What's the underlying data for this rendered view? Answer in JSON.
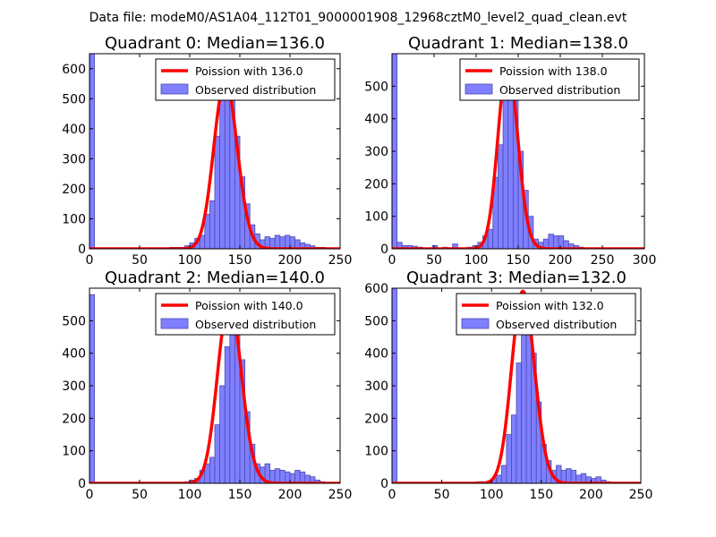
{
  "figure": {
    "suptitle": "Data file: modeM0/AS1A04_112T01_9000001908_12968cztM0_level2_quad_clean.evt"
  },
  "colors": {
    "bar_fill": "#7f7fff",
    "bar_edge": "#4b4bb0",
    "curve": "#ff0000",
    "axes": "#000000",
    "legend_edge": "#000000",
    "background": "#ffffff"
  },
  "chart_data": [
    {
      "type": "bar",
      "title": "Quadrant 0: Median=136.0",
      "xlim": [
        0,
        250
      ],
      "ylim": [
        0,
        650
      ],
      "xticks": [
        0,
        50,
        100,
        150,
        200,
        250
      ],
      "yticks": [
        0,
        100,
        200,
        300,
        400,
        500,
        600
      ],
      "legend": {
        "position": "top-right",
        "entries": [
          "Poission with 136.0",
          "Observed distribution"
        ]
      },
      "curve": {
        "name": "Poission with 136.0",
        "mean": 136.0,
        "peak": 560
      },
      "bar_width": 5,
      "bars": [
        [
          0,
          650
        ],
        [
          80,
          5
        ],
        [
          85,
          5
        ],
        [
          90,
          5
        ],
        [
          95,
          10
        ],
        [
          100,
          20
        ],
        [
          105,
          35
        ],
        [
          110,
          45
        ],
        [
          115,
          115
        ],
        [
          120,
          160
        ],
        [
          125,
          375
        ],
        [
          130,
          500
        ],
        [
          135,
          530
        ],
        [
          140,
          500
        ],
        [
          145,
          375
        ],
        [
          150,
          240
        ],
        [
          155,
          150
        ],
        [
          160,
          80
        ],
        [
          165,
          50
        ],
        [
          170,
          30
        ],
        [
          175,
          40
        ],
        [
          180,
          35
        ],
        [
          185,
          45
        ],
        [
          190,
          40
        ],
        [
          195,
          45
        ],
        [
          200,
          40
        ],
        [
          205,
          30
        ],
        [
          210,
          20
        ],
        [
          215,
          15
        ],
        [
          220,
          10
        ],
        [
          225,
          5
        ],
        [
          230,
          5
        ]
      ]
    },
    {
      "type": "bar",
      "title": "Quadrant 1: Median=138.0",
      "xlim": [
        0,
        300
      ],
      "ylim": [
        0,
        600
      ],
      "xticks": [
        0,
        50,
        100,
        150,
        200,
        250,
        300
      ],
      "yticks": [
        0,
        100,
        200,
        300,
        400,
        500
      ],
      "legend": {
        "position": "top-right",
        "entries": [
          "Poission with 138.0",
          "Observed distribution"
        ]
      },
      "curve": {
        "name": "Poission with 138.0",
        "mean": 138.0,
        "peak": 570
      },
      "bar_width": 6,
      "bars": [
        [
          0,
          600
        ],
        [
          6,
          20
        ],
        [
          12,
          10
        ],
        [
          18,
          10
        ],
        [
          24,
          8
        ],
        [
          30,
          5
        ],
        [
          48,
          10
        ],
        [
          60,
          5
        ],
        [
          72,
          15
        ],
        [
          90,
          5
        ],
        [
          96,
          10
        ],
        [
          102,
          20
        ],
        [
          108,
          40
        ],
        [
          114,
          60
        ],
        [
          120,
          220
        ],
        [
          126,
          320
        ],
        [
          132,
          480
        ],
        [
          138,
          520
        ],
        [
          144,
          470
        ],
        [
          150,
          300
        ],
        [
          156,
          180
        ],
        [
          162,
          100
        ],
        [
          168,
          30
        ],
        [
          174,
          20
        ],
        [
          180,
          30
        ],
        [
          186,
          45
        ],
        [
          192,
          40
        ],
        [
          198,
          40
        ],
        [
          204,
          25
        ],
        [
          210,
          15
        ],
        [
          216,
          10
        ],
        [
          222,
          5
        ]
      ]
    },
    {
      "type": "bar",
      "title": "Quadrant 2: Median=140.0",
      "xlim": [
        0,
        250
      ],
      "ylim": [
        0,
        600
      ],
      "xticks": [
        0,
        50,
        100,
        150,
        200,
        250
      ],
      "yticks": [
        0,
        100,
        200,
        300,
        400,
        500
      ],
      "legend": {
        "position": "top-right",
        "entries": [
          "Poission with 140.0",
          "Observed distribution"
        ]
      },
      "curve": {
        "name": "Poission with 140.0",
        "mean": 140.0,
        "peak": 560
      },
      "bar_width": 5,
      "bars": [
        [
          0,
          580
        ],
        [
          95,
          5
        ],
        [
          100,
          10
        ],
        [
          105,
          15
        ],
        [
          110,
          40
        ],
        [
          115,
          60
        ],
        [
          120,
          80
        ],
        [
          125,
          180
        ],
        [
          130,
          300
        ],
        [
          135,
          420
        ],
        [
          140,
          530
        ],
        [
          145,
          500
        ],
        [
          150,
          380
        ],
        [
          155,
          220
        ],
        [
          160,
          120
        ],
        [
          165,
          60
        ],
        [
          170,
          50
        ],
        [
          175,
          60
        ],
        [
          180,
          40
        ],
        [
          185,
          45
        ],
        [
          190,
          40
        ],
        [
          195,
          35
        ],
        [
          200,
          30
        ],
        [
          205,
          40
        ],
        [
          210,
          35
        ],
        [
          215,
          25
        ],
        [
          220,
          20
        ],
        [
          225,
          10
        ],
        [
          230,
          5
        ]
      ]
    },
    {
      "type": "bar",
      "title": "Quadrant 3: Median=132.0",
      "xlim": [
        0,
        250
      ],
      "ylim": [
        0,
        600
      ],
      "xticks": [
        0,
        50,
        100,
        150,
        200,
        250
      ],
      "yticks": [
        0,
        100,
        200,
        300,
        400,
        500,
        600
      ],
      "legend": {
        "position": "top-right",
        "entries": [
          "Poission with 132.0",
          "Observed distribution"
        ]
      },
      "curve": {
        "name": "Poission with 132.0",
        "mean": 132.0,
        "peak": 590
      },
      "bar_width": 5,
      "bars": [
        [
          0,
          600
        ],
        [
          85,
          5
        ],
        [
          90,
          5
        ],
        [
          95,
          5
        ],
        [
          100,
          15
        ],
        [
          105,
          25
        ],
        [
          110,
          55
        ],
        [
          115,
          150
        ],
        [
          120,
          210
        ],
        [
          125,
          370
        ],
        [
          130,
          540
        ],
        [
          135,
          560
        ],
        [
          140,
          400
        ],
        [
          145,
          250
        ],
        [
          150,
          120
        ],
        [
          155,
          70
        ],
        [
          160,
          40
        ],
        [
          165,
          55
        ],
        [
          170,
          40
        ],
        [
          175,
          45
        ],
        [
          180,
          40
        ],
        [
          185,
          25
        ],
        [
          190,
          30
        ],
        [
          195,
          20
        ],
        [
          200,
          15
        ],
        [
          205,
          20
        ],
        [
          210,
          10
        ],
        [
          215,
          5
        ]
      ]
    }
  ]
}
